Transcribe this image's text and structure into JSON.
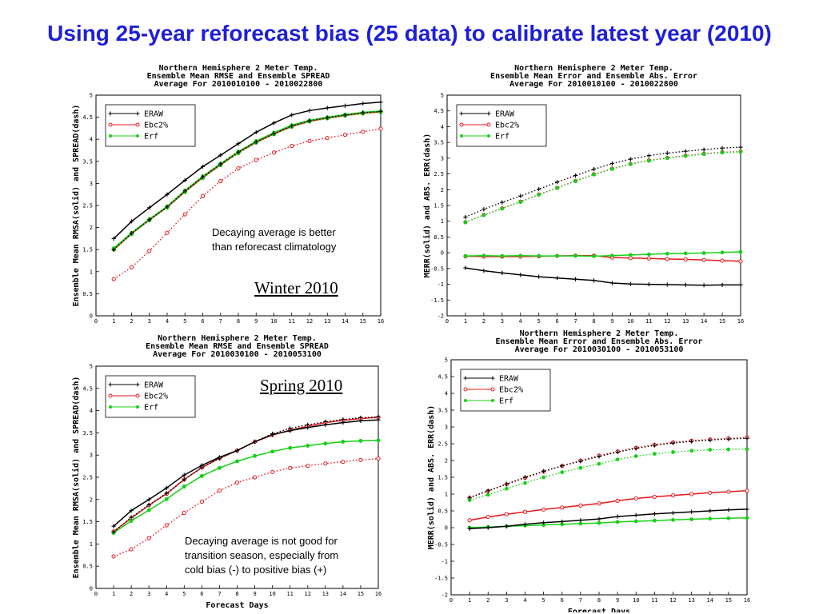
{
  "slide_title": "Using 25-year reforecast bias (25 data) to calibrate latest year (2010)",
  "annotations": {
    "winter_note": "Decaying average is better\nthan reforecast climatology",
    "winter_label": "Winter 2010",
    "spring_label": "Spring 2010",
    "spring_note": "Decaying average is not good for\ntransition season, especially from\ncold bias (-) to positive bias (+)"
  },
  "colors": {
    "ERAW": "#000000",
    "Ebc2%": "#e8161b",
    "Erf": "#18d018",
    "title": "#1f1fd6"
  },
  "chart_data": [
    {
      "type": "line",
      "title": [
        "Northern Hemisphere 2 Meter Temp.",
        "Ensemble Mean RMSE and Ensemble SPREAD",
        "Average For 2010010100 - 2010022800"
      ],
      "xlabel": "",
      "ylabel": "Ensemble Mean RMSA(solid) and SPREAD(dash)",
      "xlim": [
        0,
        16
      ],
      "ylim": [
        0,
        5
      ],
      "x_ticks": [
        0,
        1,
        2,
        3,
        4,
        5,
        6,
        7,
        8,
        9,
        10,
        11,
        12,
        13,
        14,
        15,
        16
      ],
      "y_ticks": [
        0,
        0.5,
        1,
        1.5,
        2,
        2.5,
        3,
        3.5,
        4,
        4.5,
        5
      ],
      "legend": [
        "ERAW",
        "Ebc2%",
        "Erf"
      ],
      "legend_position": "top-left",
      "x": [
        1,
        2,
        3,
        4,
        5,
        6,
        7,
        8,
        9,
        10,
        11,
        12,
        13,
        14,
        15,
        16
      ],
      "series": [
        {
          "name": "ERAW",
          "style": "solid",
          "values": [
            1.75,
            2.14,
            2.45,
            2.75,
            3.07,
            3.38,
            3.64,
            3.9,
            4.16,
            4.37,
            4.55,
            4.65,
            4.71,
            4.76,
            4.81,
            4.84
          ]
        },
        {
          "name": "ERAW",
          "style": "dash",
          "values": [
            1.5,
            1.87,
            2.18,
            2.47,
            2.83,
            3.15,
            3.44,
            3.71,
            3.94,
            4.13,
            4.3,
            4.42,
            4.49,
            4.55,
            4.6,
            4.63
          ]
        },
        {
          "name": "Ebc2%",
          "style": "solid",
          "values": [
            1.5,
            1.86,
            2.17,
            2.46,
            2.81,
            3.13,
            3.42,
            3.7,
            3.93,
            4.12,
            4.29,
            4.41,
            4.48,
            4.54,
            4.59,
            4.62
          ]
        },
        {
          "name": "Ebc2%",
          "style": "dash",
          "values": [
            0.83,
            1.1,
            1.47,
            1.88,
            2.3,
            2.71,
            3.05,
            3.34,
            3.53,
            3.7,
            3.85,
            3.96,
            4.03,
            4.1,
            4.17,
            4.24
          ]
        },
        {
          "name": "Erf",
          "style": "solid",
          "values": [
            1.53,
            1.88,
            2.19,
            2.48,
            2.84,
            3.16,
            3.45,
            3.72,
            3.96,
            4.15,
            4.32,
            4.43,
            4.5,
            4.56,
            4.61,
            4.64
          ]
        },
        {
          "name": "Erf",
          "style": "dash",
          "values": [
            1.5,
            1.85,
            2.16,
            2.45,
            2.8,
            3.12,
            3.41,
            3.68,
            3.92,
            4.11,
            4.28,
            4.4,
            4.47,
            4.53,
            4.58,
            4.61
          ]
        }
      ]
    },
    {
      "type": "line",
      "title": [
        "Northern Hemisphere 2 Meter Temp.",
        "Ensemble Mean Error and Ensemble Abs. Error",
        "Average For 2010010100 - 2010022800"
      ],
      "xlabel": "",
      "ylabel": "MERR(solid) and ABS. ERR(dash)",
      "xlim": [
        0,
        16
      ],
      "ylim": [
        -2,
        5
      ],
      "x_ticks": [
        0,
        1,
        2,
        3,
        4,
        5,
        6,
        7,
        8,
        9,
        10,
        11,
        12,
        13,
        14,
        15,
        16
      ],
      "y_ticks": [
        -2,
        -1.5,
        -1,
        -0.5,
        0,
        0.5,
        1,
        1.5,
        2,
        2.5,
        3,
        3.5,
        4,
        4.5,
        5
      ],
      "legend": [
        "ERAW",
        "Ebc2%",
        "Erf"
      ],
      "legend_position": "top-left",
      "x": [
        1,
        2,
        3,
        4,
        5,
        6,
        7,
        8,
        9,
        10,
        11,
        12,
        13,
        14,
        15,
        16
      ],
      "series": [
        {
          "name": "ERAW",
          "style": "solid",
          "values": [
            -0.48,
            -0.57,
            -0.64,
            -0.7,
            -0.76,
            -0.8,
            -0.84,
            -0.88,
            -0.96,
            -0.99,
            -1.0,
            -1.01,
            -1.02,
            -1.03,
            -1.02,
            -1.02
          ]
        },
        {
          "name": "ERAW",
          "style": "dash",
          "values": [
            1.13,
            1.38,
            1.6,
            1.8,
            2.02,
            2.24,
            2.45,
            2.65,
            2.83,
            2.97,
            3.08,
            3.16,
            3.22,
            3.27,
            3.32,
            3.35
          ]
        },
        {
          "name": "Ebc2%",
          "style": "solid",
          "values": [
            -0.11,
            -0.12,
            -0.12,
            -0.12,
            -0.11,
            -0.1,
            -0.09,
            -0.09,
            -0.15,
            -0.17,
            -0.18,
            -0.2,
            -0.21,
            -0.23,
            -0.25,
            -0.27
          ]
        },
        {
          "name": "Ebc2%",
          "style": "dash",
          "values": [
            0.97,
            1.2,
            1.41,
            1.62,
            1.85,
            2.06,
            2.28,
            2.49,
            2.67,
            2.82,
            2.93,
            3.01,
            3.08,
            3.14,
            3.19,
            3.21
          ]
        },
        {
          "name": "Erf",
          "style": "solid",
          "values": [
            -0.1,
            -0.09,
            -0.1,
            -0.09,
            -0.1,
            -0.1,
            -0.1,
            -0.11,
            -0.09,
            -0.07,
            -0.05,
            -0.03,
            -0.02,
            -0.01,
            0.01,
            0.03
          ]
        },
        {
          "name": "Erf",
          "style": "dash",
          "values": [
            0.97,
            1.19,
            1.4,
            1.61,
            1.84,
            2.05,
            2.27,
            2.48,
            2.66,
            2.81,
            2.92,
            3.0,
            3.07,
            3.13,
            3.18,
            3.2
          ]
        }
      ]
    },
    {
      "type": "line",
      "title": [
        "Northern Hemisphere 2 Meter Temp.",
        "Ensemble Mean RMSE and Ensemble SPREAD",
        "Average For 2010030100 - 2010053100"
      ],
      "xlabel": "Forecast Days",
      "ylabel": "Ensemble Mean RMSA(solid) and SPREAD(dash)",
      "xlim": [
        0,
        16
      ],
      "ylim": [
        0,
        5
      ],
      "x_ticks": [
        0,
        1,
        2,
        3,
        4,
        5,
        6,
        7,
        8,
        9,
        10,
        11,
        12,
        13,
        14,
        15,
        16
      ],
      "y_ticks": [
        0,
        0.5,
        1,
        1.5,
        2,
        2.5,
        3,
        3.5,
        4,
        4.5,
        5
      ],
      "legend": [
        "ERAW",
        "Ebc2%",
        "Erf"
      ],
      "legend_position": "top-left",
      "x": [
        1,
        2,
        3,
        4,
        5,
        6,
        7,
        8,
        9,
        10,
        11,
        12,
        13,
        14,
        15,
        16
      ],
      "series": [
        {
          "name": "ERAW",
          "style": "solid",
          "values": [
            1.4,
            1.75,
            2.0,
            2.26,
            2.55,
            2.77,
            2.95,
            3.1,
            3.3,
            3.46,
            3.55,
            3.62,
            3.68,
            3.73,
            3.77,
            3.79
          ]
        },
        {
          "name": "ERAW",
          "style": "dash",
          "values": [
            1.27,
            1.6,
            1.88,
            2.14,
            2.45,
            2.72,
            2.92,
            3.1,
            3.3,
            3.48,
            3.6,
            3.68,
            3.75,
            3.8,
            3.84,
            3.86
          ]
        },
        {
          "name": "Ebc2%",
          "style": "solid",
          "values": [
            1.28,
            1.58,
            1.87,
            2.13,
            2.45,
            2.72,
            2.93,
            3.1,
            3.3,
            3.45,
            3.56,
            3.65,
            3.73,
            3.78,
            3.82,
            3.85
          ]
        },
        {
          "name": "Ebc2%",
          "style": "dash",
          "values": [
            0.72,
            0.88,
            1.13,
            1.42,
            1.7,
            1.95,
            2.2,
            2.38,
            2.5,
            2.62,
            2.71,
            2.76,
            2.81,
            2.85,
            2.89,
            2.92
          ]
        },
        {
          "name": "Erf",
          "style": "solid",
          "values": [
            1.25,
            1.52,
            1.76,
            2.01,
            2.29,
            2.53,
            2.71,
            2.86,
            2.98,
            3.08,
            3.16,
            3.21,
            3.26,
            3.3,
            3.32,
            3.33
          ]
        },
        {
          "name": "Erf",
          "style": "dash",
          "values": [
            1.25,
            1.52,
            1.76,
            2.01,
            2.29,
            2.53,
            2.71,
            2.86,
            2.98,
            3.08,
            3.16,
            3.21,
            3.26,
            3.3,
            3.32,
            3.33
          ]
        }
      ]
    },
    {
      "type": "line",
      "title": [
        "Northern Hemisphere 2 Meter Temp.",
        "Ensemble Mean Error and Ensemble Abs. Error",
        "Average For 2010030100 - 2010053100"
      ],
      "xlabel": "Forecast Days",
      "ylabel": "MERR(solid) and ABS. ERR(dash)",
      "xlim": [
        0,
        16
      ],
      "ylim": [
        -2,
        5
      ],
      "x_ticks": [
        0,
        1,
        2,
        3,
        4,
        5,
        6,
        7,
        8,
        9,
        10,
        11,
        12,
        13,
        14,
        15,
        16
      ],
      "y_ticks": [
        -2,
        -1.5,
        -1,
        -0.5,
        0,
        0.5,
        1,
        1.5,
        2,
        2.5,
        3,
        3.5,
        4,
        4.5,
        5
      ],
      "legend": [
        "ERAW",
        "Ebc2%",
        "Erf"
      ],
      "legend_position": "top-left",
      "x": [
        1,
        2,
        3,
        4,
        5,
        6,
        7,
        8,
        9,
        10,
        11,
        12,
        13,
        14,
        15,
        16
      ],
      "series": [
        {
          "name": "ERAW",
          "style": "solid",
          "values": [
            -0.03,
            0.0,
            0.04,
            0.1,
            0.15,
            0.18,
            0.22,
            0.26,
            0.33,
            0.37,
            0.41,
            0.44,
            0.47,
            0.5,
            0.53,
            0.55
          ]
        },
        {
          "name": "ERAW",
          "style": "dash",
          "values": [
            0.9,
            1.1,
            1.3,
            1.5,
            1.68,
            1.84,
            1.98,
            2.12,
            2.25,
            2.36,
            2.45,
            2.52,
            2.57,
            2.61,
            2.64,
            2.66
          ]
        },
        {
          "name": "Ebc2%",
          "style": "solid",
          "values": [
            0.22,
            0.32,
            0.4,
            0.47,
            0.54,
            0.6,
            0.66,
            0.72,
            0.8,
            0.87,
            0.92,
            0.96,
            1.0,
            1.04,
            1.07,
            1.1
          ]
        },
        {
          "name": "Ebc2%",
          "style": "dash",
          "values": [
            0.88,
            1.09,
            1.29,
            1.48,
            1.67,
            1.84,
            2.0,
            2.15,
            2.27,
            2.38,
            2.47,
            2.54,
            2.59,
            2.63,
            2.66,
            2.69
          ]
        },
        {
          "name": "Erf",
          "style": "solid",
          "values": [
            0.0,
            0.02,
            0.04,
            0.06,
            0.08,
            0.1,
            0.12,
            0.14,
            0.17,
            0.19,
            0.21,
            0.23,
            0.25,
            0.27,
            0.28,
            0.29
          ]
        },
        {
          "name": "Erf",
          "style": "dash",
          "values": [
            0.82,
            0.98,
            1.16,
            1.33,
            1.5,
            1.65,
            1.78,
            1.9,
            2.03,
            2.13,
            2.2,
            2.25,
            2.29,
            2.32,
            2.33,
            2.34
          ]
        }
      ]
    }
  ]
}
